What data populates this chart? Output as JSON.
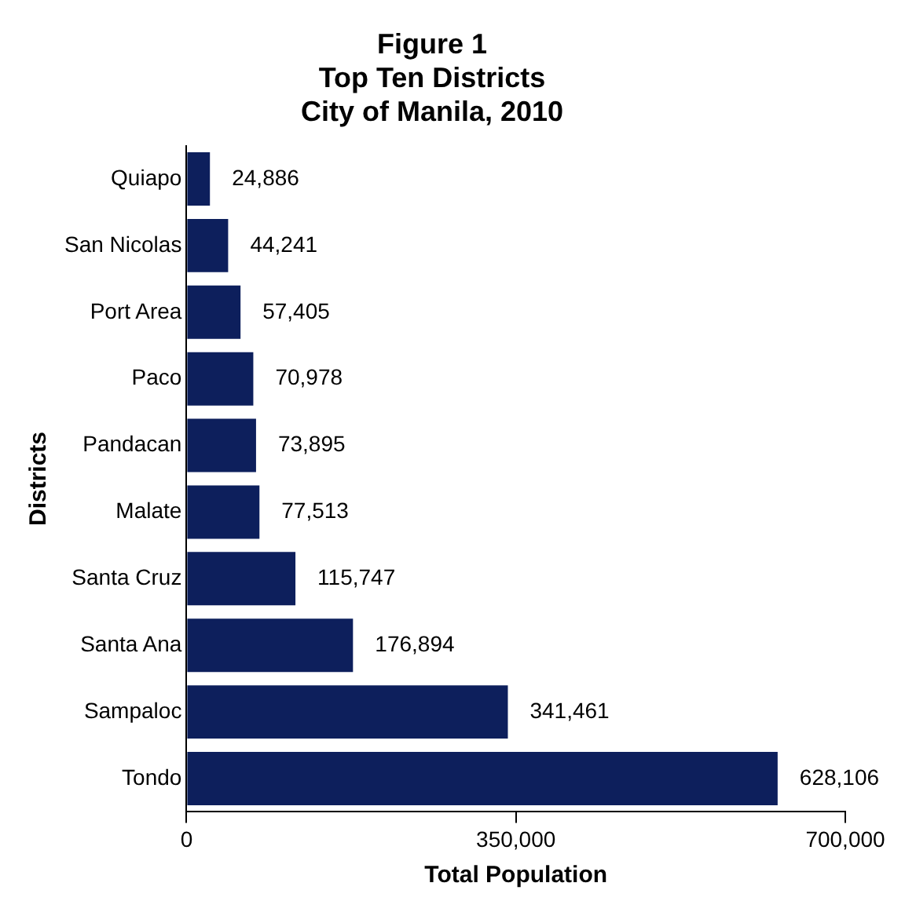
{
  "chart_data": {
    "type": "bar",
    "orientation": "horizontal",
    "title": "Figure 1\nTop Ten Districts\nCity of Manila, 2010",
    "xlabel": "Total Population",
    "ylabel": "Districts",
    "categories": [
      "Quiapo",
      "San Nicolas",
      "Port Area",
      "Paco",
      "Pandacan",
      "Malate",
      "Santa Cruz",
      "Santa Ana",
      "Sampaloc",
      "Tondo"
    ],
    "values": [
      24886,
      44241,
      57405,
      70978,
      73895,
      77513,
      115747,
      176894,
      341461,
      628106
    ],
    "value_labels": [
      "24,886",
      "44,241",
      "57,405",
      "70,978",
      "73,895",
      "77,513",
      "115,747",
      "176,894",
      "341,461",
      "628,106"
    ],
    "color": "#0d1f5c",
    "xlim": [
      0,
      700000
    ],
    "xticks": [
      0,
      {
        "value": 350000,
        "label": "350,000"
      },
      {
        "value": 700000,
        "label": "700,000"
      }
    ],
    "grid": false,
    "legend": false
  }
}
